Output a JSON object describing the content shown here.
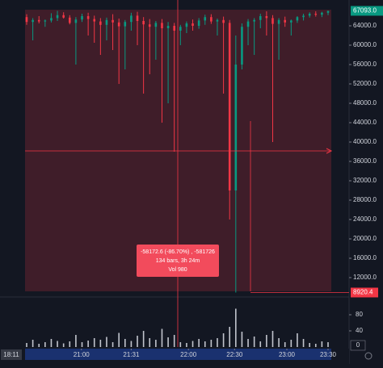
{
  "chart_data": {
    "type": "candlestick",
    "up_color": "#089981",
    "down_color": "#f23645",
    "open": [
      65800,
      64800,
      65200,
      64900,
      65100,
      65600,
      66200,
      65700,
      64600,
      65300,
      66000,
      65400,
      64900,
      64200,
      65200,
      64700,
      63900,
      64800,
      66100,
      65000,
      64300,
      63800,
      64600,
      63500,
      64000,
      63000,
      63800,
      64500,
      64000,
      65100,
      65800,
      64900,
      65200,
      64600,
      30000,
      56000,
      63800,
      64900,
      65200,
      66000,
      65600,
      64400,
      65200,
      64700,
      65100,
      65800,
      66100,
      66500,
      66300,
      66700
    ],
    "high": [
      66400,
      65600,
      66000,
      65300,
      66600,
      67093,
      66800,
      66200,
      65800,
      66500,
      66700,
      66100,
      65600,
      65700,
      66400,
      65500,
      65200,
      66700,
      66900,
      65800,
      65400,
      65000,
      65400,
      64800,
      64600,
      64200,
      64900,
      65300,
      65600,
      66300,
      66400,
      65500,
      65900,
      65200,
      62000,
      64500,
      65400,
      65600,
      66500,
      67000,
      66200,
      65600,
      65900,
      65300,
      66000,
      66500,
      66800,
      67000,
      66900,
      67093
    ],
    "low": [
      64200,
      61000,
      64500,
      63800,
      64700,
      65000,
      65500,
      64300,
      56000,
      64800,
      62000,
      60500,
      58000,
      61000,
      59000,
      52000,
      55000,
      63000,
      60000,
      50000,
      54000,
      57000,
      44000,
      48000,
      38000,
      60000,
      62500,
      63000,
      63400,
      64200,
      64400,
      62000,
      50000,
      24000,
      8920.4,
      55000,
      60000,
      58000,
      63500,
      62000,
      40000,
      57000,
      63800,
      62000,
      64600,
      65100,
      65700,
      65900,
      65800,
      66200
    ],
    "close": [
      64800,
      65200,
      64900,
      65100,
      65600,
      66200,
      65700,
      64600,
      65300,
      66000,
      65400,
      64900,
      64200,
      65200,
      64700,
      63900,
      64800,
      66100,
      65000,
      64300,
      63800,
      64600,
      63500,
      64000,
      63000,
      63800,
      64500,
      64000,
      65100,
      65800,
      64900,
      65200,
      64600,
      30000,
      56000,
      63800,
      64900,
      65200,
      66000,
      65600,
      64400,
      65200,
      64700,
      65100,
      65800,
      66100,
      66500,
      66300,
      66700,
      67093
    ],
    "volume": [
      10,
      18,
      8,
      12,
      20,
      15,
      9,
      14,
      30,
      12,
      16,
      22,
      18,
      25,
      12,
      35,
      20,
      15,
      28,
      40,
      22,
      18,
      45,
      24,
      30,
      12,
      10,
      15,
      20,
      14,
      18,
      22,
      34,
      50,
      95,
      38,
      20,
      26,
      14,
      30,
      40,
      22,
      12,
      18,
      34,
      20,
      10,
      8,
      14,
      12
    ],
    "ylim": [
      8000,
      69333
    ],
    "yticks": [
      {
        "value": 12000,
        "label": "12000.0"
      },
      {
        "value": 16000,
        "label": "16000.0"
      },
      {
        "value": 20000,
        "label": "20000.0"
      },
      {
        "value": 24000,
        "label": "24000.0"
      },
      {
        "value": 28000,
        "label": "28000.0"
      },
      {
        "value": 32000,
        "label": "32000.0"
      },
      {
        "value": 36000,
        "label": "36000.0"
      },
      {
        "value": 40000,
        "label": "40000.0"
      },
      {
        "value": 44000,
        "label": "44000.0"
      },
      {
        "value": 48000,
        "label": "48000.0"
      },
      {
        "value": 52000,
        "label": "52000.0"
      },
      {
        "value": 56000,
        "label": "56000.0"
      },
      {
        "value": 60000,
        "label": "60000.0"
      },
      {
        "value": 64000,
        "label": "64000.0"
      }
    ],
    "vlim": [
      0,
      120
    ],
    "vticks": [
      40,
      80
    ],
    "xticks": [
      {
        "value": 8.9,
        "label": "21:00"
      },
      {
        "value": 17,
        "label": "21:31"
      },
      {
        "value": 26.3,
        "label": "22:00"
      },
      {
        "value": 33.8,
        "label": "22:30"
      },
      {
        "value": 42.3,
        "label": "23:00"
      },
      {
        "value": 49,
        "label": "23:30"
      }
    ],
    "current_price": {
      "value": 67093,
      "label": "67093.0"
    },
    "measure_low": {
      "value": 8920.4,
      "label": "8920.4"
    },
    "crosshair_time": "18:11",
    "volume_scale_label": "0",
    "tooltip": [
      "-58172.6 (-86.70%) , -581726",
      "134 bars, 3h 24m",
      "Vol 980"
    ]
  }
}
